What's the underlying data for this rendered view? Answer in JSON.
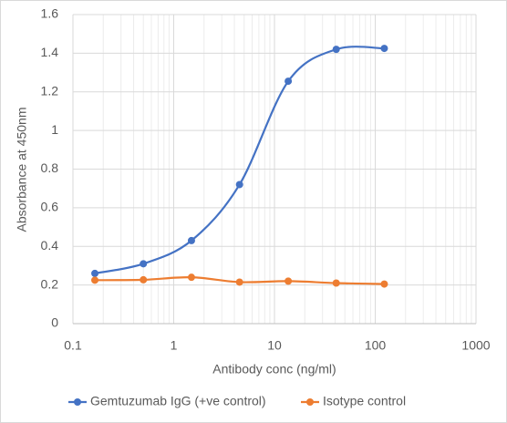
{
  "chart_data": {
    "type": "line",
    "x_label": "Antibody conc (ng/ml)",
    "y_label": "Absorbance at 450nm",
    "x_scale": "log",
    "smooth": true,
    "grid": true,
    "legend": "bottom",
    "xlim": [
      0.1,
      1000
    ],
    "xticks": [
      0.1,
      1,
      10,
      100,
      1000
    ],
    "ylim": [
      0,
      1.6
    ],
    "yticks": [
      0,
      0.2,
      0.4,
      0.6,
      0.8,
      1,
      1.2,
      1.4,
      1.6
    ],
    "x": [
      0.165,
      0.5,
      1.5,
      4.5,
      13.7,
      41,
      123
    ],
    "series": [
      {
        "name": "Gemtuzumab IgG (+ve control)",
        "color": "#4472c4",
        "values": [
          0.26,
          0.31,
          0.43,
          0.72,
          1.255,
          1.42,
          1.425
        ]
      },
      {
        "name": "Isotype control",
        "color": "#ed7d31",
        "values": [
          0.225,
          0.227,
          0.24,
          0.215,
          0.22,
          0.21,
          0.205
        ]
      }
    ]
  }
}
